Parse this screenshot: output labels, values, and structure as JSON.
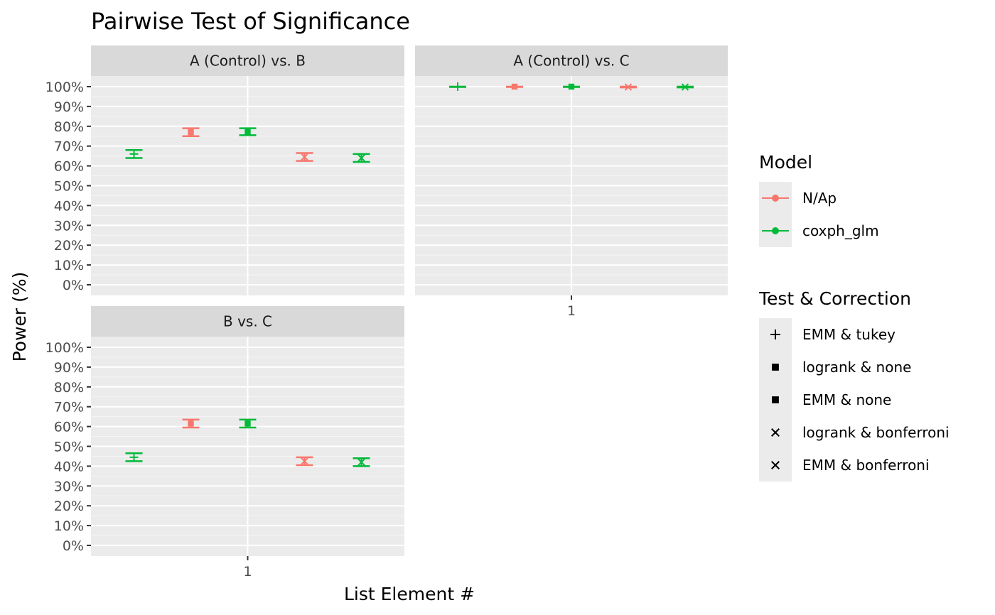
{
  "chart_data": {
    "type": "scatter",
    "title": "Pairwise Test of Significance",
    "xlabel": "List Element #",
    "ylabel": "Power (%)",
    "x_categories": [
      "1"
    ],
    "ylim": [
      0,
      100
    ],
    "y_ticks": [
      "0%",
      "10%",
      "20%",
      "30%",
      "40%",
      "50%",
      "60%",
      "70%",
      "80%",
      "90%",
      "100%"
    ],
    "grid": true,
    "colors": {
      "N/Ap": "#F8766D",
      "coxph_glm": "#00BA38"
    },
    "panels": [
      {
        "label": "A (Control) vs. B",
        "points": [
          {
            "test": "EMM & tukey",
            "model": "coxph_glm",
            "y": 66,
            "lo": 64,
            "hi": 68
          },
          {
            "test": "logrank & none",
            "model": "N/Ap",
            "y": 77,
            "lo": 75,
            "hi": 79
          },
          {
            "test": "EMM & none",
            "model": "coxph_glm",
            "y": 77,
            "lo": 75.5,
            "hi": 79
          },
          {
            "test": "logrank & bonferroni",
            "model": "N/Ap",
            "y": 64.5,
            "lo": 62.5,
            "hi": 66.5
          },
          {
            "test": "EMM & bonferroni",
            "model": "coxph_glm",
            "y": 64,
            "lo": 62,
            "hi": 66
          }
        ]
      },
      {
        "label": "A (Control) vs. C",
        "points": [
          {
            "test": "EMM & tukey",
            "model": "coxph_glm",
            "y": 100,
            "lo": 99.8,
            "hi": 100
          },
          {
            "test": "logrank & none",
            "model": "N/Ap",
            "y": 100,
            "lo": 99.8,
            "hi": 100
          },
          {
            "test": "EMM & none",
            "model": "coxph_glm",
            "y": 100,
            "lo": 99.8,
            "hi": 100
          },
          {
            "test": "logrank & bonferroni",
            "model": "N/Ap",
            "y": 99.8,
            "lo": 99.6,
            "hi": 100
          },
          {
            "test": "EMM & bonferroni",
            "model": "coxph_glm",
            "y": 99.8,
            "lo": 99.6,
            "hi": 100
          }
        ]
      },
      {
        "label": "B vs. C",
        "points": [
          {
            "test": "EMM & tukey",
            "model": "coxph_glm",
            "y": 44.5,
            "lo": 42.5,
            "hi": 46.5
          },
          {
            "test": "logrank & none",
            "model": "N/Ap",
            "y": 61.5,
            "lo": 59.5,
            "hi": 63.5
          },
          {
            "test": "EMM & none",
            "model": "coxph_glm",
            "y": 61.5,
            "lo": 59.5,
            "hi": 63.5
          },
          {
            "test": "logrank & bonferroni",
            "model": "N/Ap",
            "y": 42.5,
            "lo": 40.5,
            "hi": 44.5
          },
          {
            "test": "EMM & bonferroni",
            "model": "coxph_glm",
            "y": 42,
            "lo": 40,
            "hi": 44
          }
        ]
      }
    ],
    "legends": {
      "model": {
        "title": "Model",
        "items": [
          "N/Ap",
          "coxph_glm"
        ]
      },
      "test": {
        "title": "Test & Correction",
        "items": [
          {
            "label": "EMM & tukey",
            "shape": "plus"
          },
          {
            "label": "logrank & none",
            "shape": "square"
          },
          {
            "label": "EMM & none",
            "shape": "square"
          },
          {
            "label": "logrank & bonferroni",
            "shape": "cross"
          },
          {
            "label": "EMM & bonferroni",
            "shape": "cross"
          }
        ]
      }
    }
  }
}
